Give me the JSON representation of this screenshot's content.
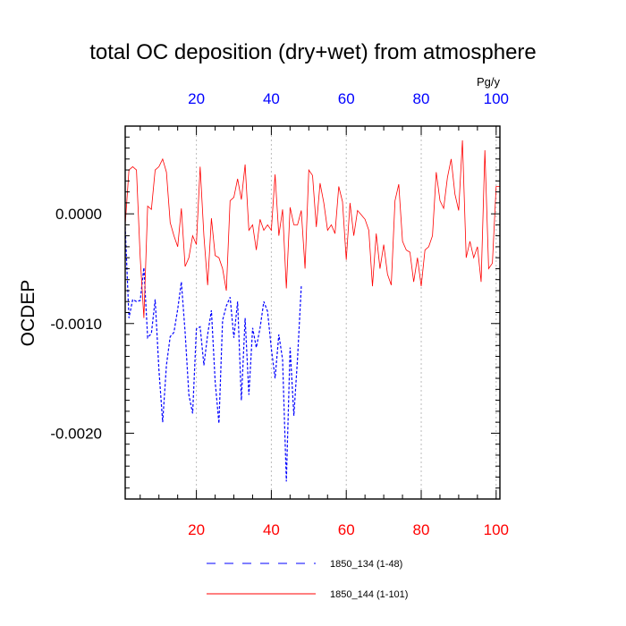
{
  "chart_data": {
    "type": "line",
    "title": "total OC deposition (dry+wet) from atmosphere",
    "ylabel": "OCDEP",
    "top_axis_unit": "Pg/y",
    "xlim": [
      1,
      101
    ],
    "ylim": [
      -0.0026,
      0.0008
    ],
    "x_ticks": [
      20,
      40,
      60,
      80,
      100
    ],
    "x_tick_labels_bottom": [
      "20",
      "40",
      "60",
      "80",
      "100"
    ],
    "x_tick_labels_top": [
      "20",
      "40",
      "60",
      "80",
      "100"
    ],
    "y_ticks": [
      0.0,
      -0.001,
      -0.002
    ],
    "y_tick_labels": [
      "0.0000",
      "-0.0010",
      "-0.0020"
    ],
    "colors": {
      "bottom_ticks": "#ff0000",
      "top_ticks": "#0000ff"
    },
    "series": [
      {
        "name": "1850_134 (1-48)",
        "color": "#0000ff",
        "dash": "dashed",
        "x_start": 1,
        "values": [
          -0.00012,
          -0.00095,
          -0.00078,
          -0.0008,
          -0.00079,
          -0.00049,
          -0.00113,
          -0.00109,
          -0.00078,
          -0.00142,
          -0.0019,
          -0.00138,
          -0.00112,
          -0.00108,
          -0.00087,
          -0.00062,
          -0.00108,
          -0.00165,
          -0.00182,
          -0.00105,
          -0.00103,
          -0.00138,
          -0.0011,
          -0.00088,
          -0.00153,
          -0.00191,
          -0.00097,
          -0.00084,
          -0.00076,
          -0.00113,
          -0.0008,
          -0.0017,
          -0.00095,
          -0.00165,
          -0.00104,
          -0.00122,
          -0.00104,
          -0.0008,
          -0.00089,
          -0.00123,
          -0.0015,
          -0.0011,
          -0.00133,
          -0.00244,
          -0.00122,
          -0.00184,
          -0.00132,
          -0.00066
        ]
      },
      {
        "name": "1850_144 (1-101)",
        "color": "#ff0000",
        "dash": "solid",
        "x_start": 1,
        "values": [
          -0.0001,
          0.0004,
          0.00043,
          0.0004,
          -0.0004,
          -0.00095,
          7e-05,
          4e-05,
          0.0004,
          0.00043,
          0.0005,
          0.00038,
          -8e-05,
          -0.0002,
          -0.0003,
          5e-05,
          -0.00048,
          -0.0004,
          -0.0002,
          -0.00028,
          0.00043,
          -0.0002,
          -0.00065,
          -4e-05,
          -0.00038,
          -0.0004,
          -0.0005,
          -0.0007,
          0.00012,
          0.00015,
          0.00032,
          0.00013,
          0.00045,
          -0.00015,
          -0.0001,
          -0.00033,
          -5e-05,
          -0.00015,
          -0.0001,
          -0.00015,
          0.00036,
          -0.0002,
          4e-05,
          -0.00068,
          6e-05,
          -0.0001,
          -0.0001,
          3e-05,
          -0.0005,
          0.0004,
          0.00035,
          -0.00012,
          0.00028,
          0.0001,
          -0.00015,
          -0.0001,
          -0.00018,
          0.00025,
          0.00011,
          -0.00042,
          0.0001,
          -0.0002,
          3e-05,
          -1e-05,
          -5e-05,
          -0.00015,
          -0.00066,
          -0.00018,
          -0.0005,
          -0.00028,
          -0.00055,
          -0.00065,
          0.00012,
          0.00027,
          -0.00025,
          -0.00033,
          -0.00035,
          -0.00062,
          -0.0004,
          -0.00066,
          -0.00033,
          -0.0003,
          -0.0002,
          0.00038,
          0.00012,
          5e-05,
          0.00033,
          0.0005,
          0.00018,
          3e-05,
          0.00067,
          -0.0004,
          -0.00025,
          -0.0004,
          -0.0003,
          -0.00062,
          0.00058,
          -0.0005,
          -0.00045,
          0.00025,
          0.00025
        ]
      }
    ],
    "legend": [
      {
        "label": "1850_134 (1-48)",
        "color": "#0000ff",
        "dash": "dashed"
      },
      {
        "label": "1850_144 (1-101)",
        "color": "#ff0000",
        "dash": "solid"
      }
    ]
  }
}
